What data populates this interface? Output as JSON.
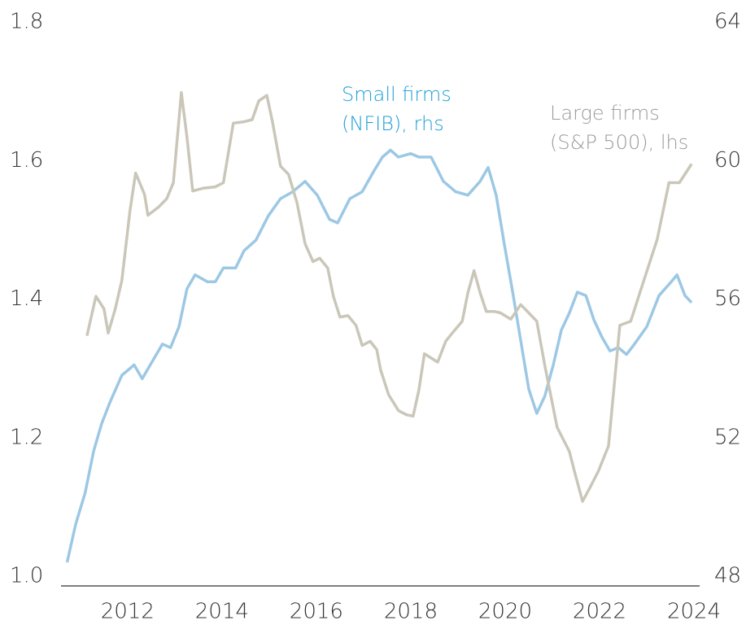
{
  "chart_data": {
    "type": "line",
    "annotations": [
      [
        "Small firms",
        "(NFIB), rhs"
      ],
      [
        "Large firms",
        "(S&P 500), lhs"
      ]
    ],
    "xlim": [
      2010.59,
      2024.12
    ],
    "xticks": [
      2012,
      2014,
      2016,
      2018,
      2020,
      2022,
      2024
    ],
    "ylim": [
      1.0,
      1.8
    ],
    "yticks": [
      {
        "value": 1.0,
        "label": "1.0"
      },
      1.2,
      1.4,
      1.6,
      1.8
    ],
    "y2lim": [
      48,
      64
    ],
    "y2ticks": [
      48,
      52,
      56,
      60,
      64
    ],
    "series": [
      {
        "name": "Small firms (NFIB), rhs",
        "color": "#9cc8e4",
        "axis": "y2",
        "label_color": "#1e9fd6",
        "x": [
          2010.72,
          2010.9,
          2011.1,
          2011.28,
          2011.45,
          2011.62,
          2011.88,
          2012.14,
          2012.31,
          2012.48,
          2012.74,
          2012.91,
          2013.09,
          2013.26,
          2013.43,
          2013.69,
          2013.86,
          2014.03,
          2014.29,
          2014.47,
          2014.72,
          2014.98,
          2015.24,
          2015.5,
          2015.76,
          2016.02,
          2016.28,
          2016.45,
          2016.71,
          2016.97,
          2017.22,
          2017.4,
          2017.57,
          2017.74,
          2018.0,
          2018.17,
          2018.43,
          2018.69,
          2018.95,
          2019.21,
          2019.47,
          2019.64,
          2019.81,
          2019.98,
          2020.16,
          2020.33,
          2020.5,
          2020.67,
          2020.84,
          2021.02,
          2021.19,
          2021.36,
          2021.53,
          2021.71,
          2021.88,
          2022.05,
          2022.22,
          2022.4,
          2022.57,
          2022.74,
          2023.0,
          2023.26,
          2023.52,
          2023.64,
          2023.81,
          2023.95
        ],
        "values": [
          48.4,
          49.5,
          50.4,
          51.6,
          52.4,
          53.0,
          53.8,
          54.1,
          53.7,
          54.1,
          54.7,
          54.6,
          55.2,
          56.3,
          56.7,
          56.5,
          56.5,
          56.9,
          56.9,
          57.4,
          57.7,
          58.4,
          58.9,
          59.1,
          59.4,
          59.0,
          58.3,
          58.2,
          58.9,
          59.1,
          59.7,
          60.1,
          60.3,
          60.1,
          60.2,
          60.1,
          60.1,
          59.4,
          59.1,
          59.0,
          59.4,
          59.8,
          59.0,
          57.6,
          56.2,
          54.8,
          53.4,
          52.7,
          53.2,
          54.1,
          55.1,
          55.6,
          56.2,
          56.1,
          55.4,
          54.9,
          54.5,
          54.6,
          54.4,
          54.7,
          55.2,
          56.1,
          56.5,
          56.7,
          56.1,
          55.9
        ]
      },
      {
        "name": "Large firms (S&P 500), lhs",
        "color": "#cac7b9",
        "axis": "y",
        "label_color": "#9a9a9a",
        "x": [
          2011.14,
          2011.33,
          2011.5,
          2011.59,
          2011.74,
          2011.88,
          2012.05,
          2012.17,
          2012.36,
          2012.43,
          2012.66,
          2012.83,
          2012.97,
          2013.14,
          2013.26,
          2013.38,
          2013.6,
          2013.86,
          2014.03,
          2014.24,
          2014.47,
          2014.64,
          2014.78,
          2014.95,
          2015.07,
          2015.24,
          2015.41,
          2015.59,
          2015.76,
          2015.93,
          2016.07,
          2016.24,
          2016.36,
          2016.5,
          2016.67,
          2016.84,
          2016.97,
          2017.14,
          2017.28,
          2017.36,
          2017.53,
          2017.74,
          2017.91,
          2018.05,
          2018.17,
          2018.29,
          2018.43,
          2018.57,
          2018.74,
          2018.88,
          2019.09,
          2019.21,
          2019.34,
          2019.47,
          2019.6,
          2019.78,
          2019.9,
          2020.12,
          2020.33,
          2020.5,
          2020.67,
          2020.84,
          2021.1,
          2021.36,
          2021.47,
          2021.64,
          2021.79,
          2021.97,
          2022.19,
          2022.43,
          2022.66,
          2022.91,
          2023.22,
          2023.47,
          2023.69,
          2023.95
        ],
        "values": [
          1.347,
          1.404,
          1.386,
          1.351,
          1.386,
          1.427,
          1.527,
          1.582,
          1.551,
          1.521,
          1.533,
          1.545,
          1.568,
          1.698,
          1.633,
          1.556,
          1.56,
          1.562,
          1.568,
          1.654,
          1.656,
          1.659,
          1.686,
          1.694,
          1.656,
          1.592,
          1.58,
          1.539,
          1.48,
          1.454,
          1.459,
          1.445,
          1.404,
          1.374,
          1.376,
          1.362,
          1.333,
          1.339,
          1.327,
          1.298,
          1.262,
          1.239,
          1.233,
          1.231,
          1.268,
          1.321,
          1.315,
          1.309,
          1.339,
          1.351,
          1.368,
          1.409,
          1.441,
          1.409,
          1.382,
          1.382,
          1.38,
          1.371,
          1.392,
          1.38,
          1.368,
          1.304,
          1.215,
          1.18,
          1.151,
          1.108,
          1.127,
          1.151,
          1.188,
          1.362,
          1.368,
          1.421,
          1.486,
          1.568,
          1.568,
          1.595
        ]
      }
    ]
  }
}
